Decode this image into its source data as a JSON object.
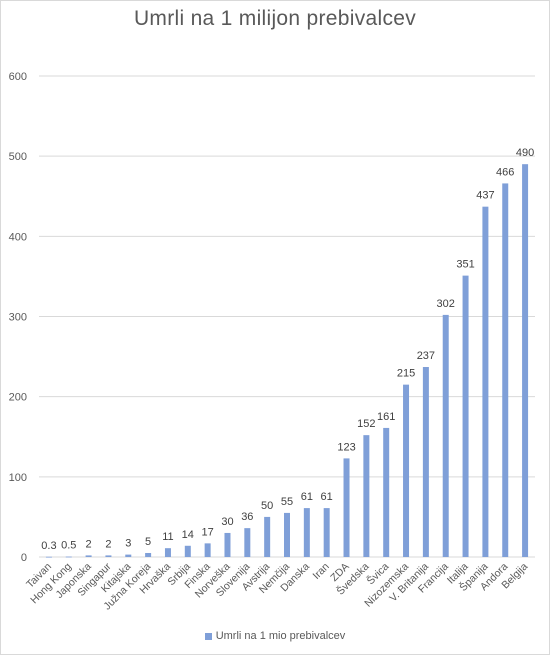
{
  "chart_data": {
    "type": "bar",
    "title": "Umrli na 1 milijon prebivalcev",
    "categories": [
      "Taivan",
      "Hong Kong",
      "Japonska",
      "Singapur",
      "Kitajska",
      "Južna Koreja",
      "Hrvaška",
      "Srbija",
      "Finska",
      "Norveška",
      "Slovenija",
      "Avstrija",
      "Nemčija",
      "Danska",
      "Iran",
      "ZDA",
      "Švedska",
      "Švica",
      "Nizozemska",
      "V. Britanija",
      "Francija",
      "Italija",
      "Španija",
      "Andora",
      "Belgija"
    ],
    "series": [
      {
        "name": "Umrli na 1 mio prebivalcev",
        "values": [
          0.3,
          0.5,
          2,
          2,
          3,
          5,
          11,
          14,
          17,
          30,
          36,
          50,
          55,
          61,
          61,
          123,
          152,
          161,
          215,
          237,
          302,
          351,
          437,
          466,
          490
        ],
        "labels": [
          "0.3",
          "0.5",
          "2",
          "2",
          "3",
          "5",
          "11",
          "14",
          "17",
          "30",
          "36",
          "50",
          "55",
          "61",
          "61",
          "123",
          "152",
          "161",
          "215",
          "237",
          "302",
          "351",
          "437",
          "466",
          "490"
        ]
      }
    ],
    "yticks": [
      "0",
      "100",
      "200",
      "300",
      "400",
      "500",
      "600"
    ],
    "ylim": [
      0,
      600
    ],
    "xlabel": "",
    "ylabel": "",
    "grid": true,
    "legend": "bottom",
    "colors": {
      "bar": "#7f9fd8",
      "grid": "#d9d9d9",
      "text": "#595959",
      "label": "#404040"
    }
  }
}
